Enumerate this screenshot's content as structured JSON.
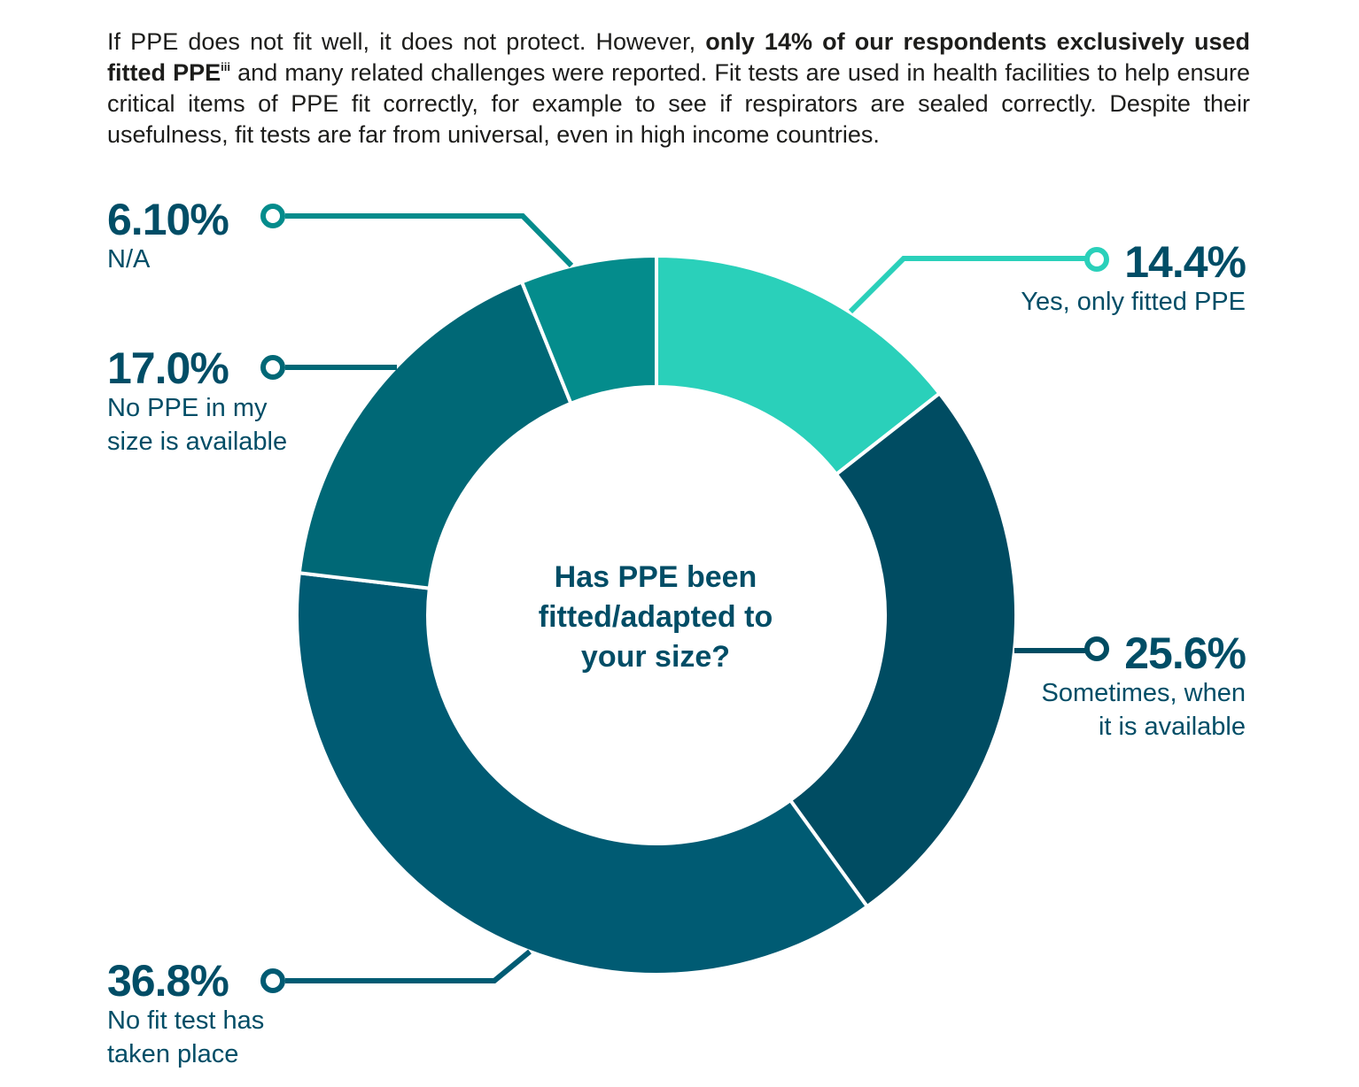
{
  "intro": {
    "part1": "If PPE does not fit well, it does not protect. However, ",
    "bold": "only 14% of our respondents exclusively used fitted PPE",
    "superscript": "iii",
    "part2": "  and many related challenges were reported. Fit tests are used in health facilities to help ensure critical items of PPE fit correctly, for example to see if respirators are sealed correctly. Despite their usefulness, fit tests are far from universal, even in high income countries."
  },
  "chart_data": {
    "type": "pie",
    "variant": "donut",
    "center_title": "Has PPE been fitted/adapted to your size?",
    "slices": [
      {
        "label": "Yes, only fitted PPE",
        "value": 14.4,
        "value_label": "14.4%",
        "color": "#2ad0ba"
      },
      {
        "label": "Sometimes, when it is available",
        "value": 25.6,
        "value_label": "25.6%",
        "color": "#004c62"
      },
      {
        "label": "No fit test has taken place",
        "value": 36.8,
        "value_label": "36.8%",
        "color": "#005b73"
      },
      {
        "label": "No PPE in my size is available",
        "value": 17.0,
        "value_label": "17.0%",
        "color": "#006876"
      },
      {
        "label": "N/A",
        "value": 6.1,
        "value_label": "6.10%",
        "color": "#048c8c"
      }
    ]
  },
  "labels": {
    "yes": {
      "pct": "14.4%",
      "text": "Yes, only fitted PPE"
    },
    "sometimes": {
      "pct": "25.6%",
      "line1": "Sometimes, when",
      "line2": "it is available"
    },
    "nofit": {
      "pct": "36.8%",
      "line1": "No fit test has",
      "line2": "taken place"
    },
    "nosize": {
      "pct": "17.0%",
      "line1": "No PPE in my",
      "line2": "size is available"
    },
    "na": {
      "pct": "6.10%",
      "text": "N/A"
    }
  }
}
